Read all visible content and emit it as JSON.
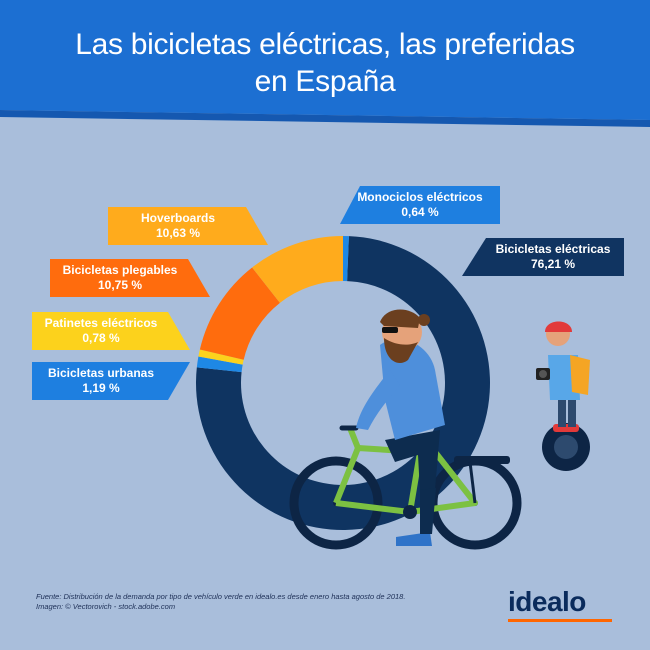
{
  "title_line1": "Las bicicletas eléctricas, las preferidas",
  "title_line2": "en España",
  "chart_data": {
    "type": "pie",
    "donut": true,
    "unit": "%",
    "slices": [
      {
        "name": "Bicicletas eléctricas",
        "value": 76.21,
        "label": "76,21 %",
        "color": "#0f3461"
      },
      {
        "name": "Bicicletas urbanas",
        "value": 1.19,
        "label": "1,19 %",
        "color": "#1e88e5"
      },
      {
        "name": "Patinetes eléctricos",
        "value": 0.78,
        "label": "0,78 %",
        "color": "#fcd21c"
      },
      {
        "name": "Bicicletas plegables",
        "value": 10.75,
        "label": "10,75 %",
        "color": "#ff6c0d"
      },
      {
        "name": "Hoverboards",
        "value": 10.63,
        "label": "10,63 %",
        "color": "#ffab1c"
      },
      {
        "name": "Monociclos eléctricos",
        "value": 0.64,
        "label": "0,64 %",
        "color": "#1e88e5"
      }
    ]
  },
  "callout_text_colors": {
    "dark": "#0f3461",
    "light": "#ffffff"
  },
  "footnote_line1": "Fuente: Distribución de la demanda por tipo de vehículo verde en idealo.es desde enero hasta agosto de 2018.",
  "footnote_line2": "Imagen: © Vectorovich - stock.adobe.com",
  "logo_text": "idealo",
  "colors": {
    "header": "#1e73d6",
    "background": "#a9bedb",
    "brand_orange": "#ff6600"
  }
}
